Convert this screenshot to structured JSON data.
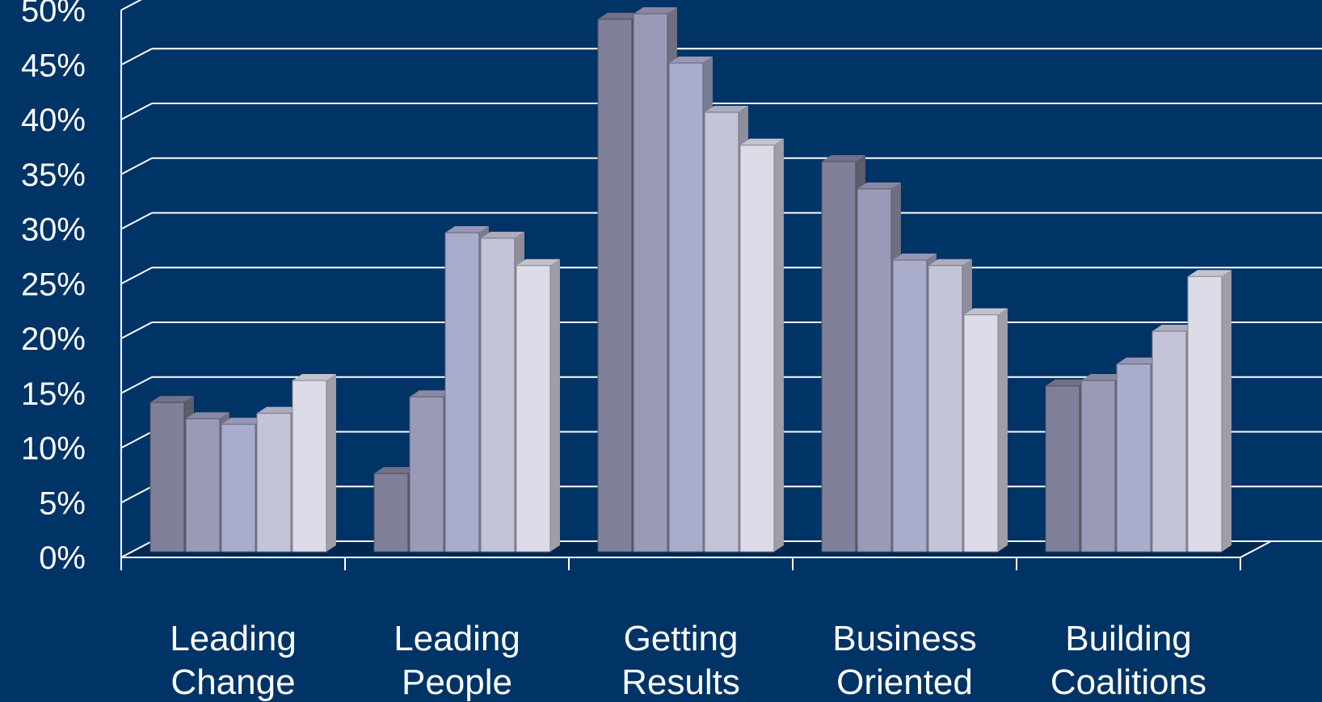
{
  "chart_data": {
    "type": "bar",
    "title": "",
    "xlabel": "",
    "ylabel": "",
    "ylim": [
      0,
      50
    ],
    "y_ticks": [
      "0%",
      "5%",
      "10%",
      "15%",
      "20%",
      "25%",
      "30%",
      "35%",
      "40%",
      "45%",
      "50%"
    ],
    "y_tick_values": [
      0,
      5,
      10,
      15,
      20,
      25,
      30,
      35,
      40,
      45,
      50
    ],
    "grid": true,
    "style": "3d-columns",
    "categories": [
      [
        "Leading",
        "Change"
      ],
      [
        "Leading",
        "People"
      ],
      [
        "Getting",
        "Results"
      ],
      [
        "Business",
        "Oriented"
      ],
      [
        "Building",
        "Coalitions"
      ]
    ],
    "series": [
      {
        "values": [
          13.5,
          7,
          48.5,
          35.5,
          15
        ],
        "color": "#80809a"
      },
      {
        "values": [
          12,
          14,
          49,
          33,
          15.5
        ],
        "color": "#9a9ab8"
      },
      {
        "values": [
          11.5,
          29,
          44.5,
          26.5,
          17
        ],
        "color": "#aaaccc"
      },
      {
        "values": [
          12.5,
          28.5,
          40,
          26,
          20
        ],
        "color": "#c4c4d8"
      },
      {
        "values": [
          15.5,
          26,
          37,
          21.5,
          25
        ],
        "color": "#dcdce8"
      }
    ],
    "colors": {
      "background": "#003366",
      "gridline": "#ffffff",
      "text": "#ffffff",
      "floor": "#00284f"
    }
  }
}
